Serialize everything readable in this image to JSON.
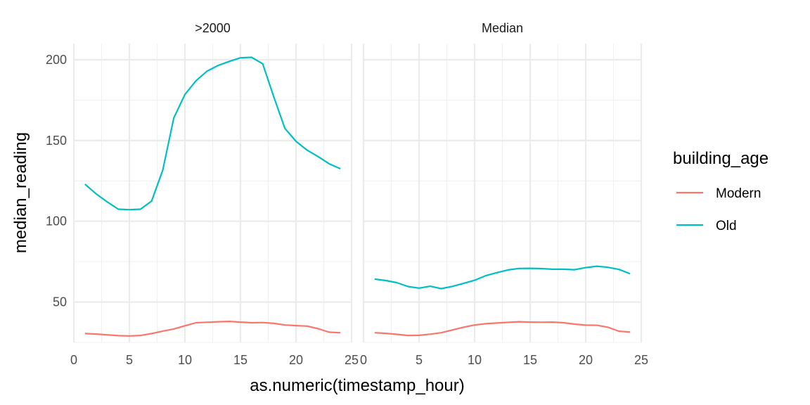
{
  "chart_data": {
    "type": "line",
    "xlabel": "as.numeric(timestamp_hour)",
    "ylabel": "median_reading",
    "xlim": [
      0,
      25
    ],
    "ylim": [
      25,
      210
    ],
    "x_ticks": [
      0,
      5,
      10,
      15,
      20,
      25
    ],
    "x_tick_labels": [
      "0",
      "5",
      "10",
      "15",
      "20",
      "25"
    ],
    "y_ticks": [
      50,
      100,
      150,
      200
    ],
    "y_tick_labels": [
      "50",
      "100",
      "150",
      "200"
    ],
    "grid": true,
    "legend": {
      "title": "building_age",
      "position": "right",
      "entries": [
        {
          "label": "Modern",
          "color": "#F8766D"
        },
        {
          "label": "Old",
          "color": "#00BFC4"
        }
      ]
    },
    "panels": [
      {
        "title": ">2000",
        "series": [
          {
            "name": "Modern",
            "color": "#F8766D",
            "x": [
              1,
              2,
              3,
              4,
              5,
              6,
              7,
              8,
              9,
              10,
              11,
              12,
              13,
              14,
              15,
              16,
              17,
              18,
              19,
              20,
              21,
              22,
              23,
              24
            ],
            "y": [
              30.5,
              30.2,
              29.7,
              29.2,
              29.0,
              29.3,
              30.5,
              32.0,
              33.3,
              35.3,
              37.2,
              37.5,
              37.8,
              38.0,
              37.6,
              37.2,
              37.3,
              36.8,
              35.8,
              35.4,
              35.1,
              33.5,
              31.3,
              31.0
            ]
          },
          {
            "name": "Old",
            "color": "#00BFC4",
            "x": [
              1,
              2,
              3,
              4,
              5,
              6,
              7,
              8,
              9,
              10,
              11,
              12,
              13,
              14,
              15,
              16,
              17,
              18,
              19,
              20,
              21,
              22,
              23,
              24
            ],
            "y": [
              123,
              117,
              112,
              107.5,
              107.2,
              107.5,
              112.5,
              131.5,
              164,
              178.5,
              187,
              193,
              196.5,
              199,
              201.2,
              201.5,
              197.5,
              177,
              157.5,
              149.5,
              144,
              140,
              135.5,
              132.5
            ]
          }
        ]
      },
      {
        "title": "Median",
        "series": [
          {
            "name": "Modern",
            "color": "#F8766D",
            "x": [
              1,
              2,
              3,
              4,
              5,
              6,
              7,
              8,
              9,
              10,
              11,
              12,
              13,
              14,
              15,
              16,
              17,
              18,
              19,
              20,
              21,
              22,
              23,
              24
            ],
            "y": [
              31.0,
              30.6,
              30.0,
              29.3,
              29.4,
              30.1,
              31.0,
              32.7,
              34.4,
              35.8,
              36.6,
              37.0,
              37.4,
              37.8,
              37.6,
              37.5,
              37.6,
              37.2,
              36.3,
              35.7,
              35.6,
              34.4,
              31.9,
              31.4
            ]
          },
          {
            "name": "Old",
            "color": "#00BFC4",
            "x": [
              1,
              2,
              3,
              4,
              5,
              6,
              7,
              8,
              9,
              10,
              11,
              12,
              13,
              14,
              15,
              16,
              17,
              18,
              19,
              20,
              21,
              22,
              23,
              24
            ],
            "y": [
              64.2,
              63.3,
              62.0,
              59.6,
              58.6,
              59.8,
              58.3,
              59.7,
              61.5,
              63.5,
              66.3,
              68.2,
              69.9,
              70.8,
              70.9,
              70.7,
              70.3,
              70.3,
              70.0,
              71.3,
              72.2,
              71.5,
              70.2,
              67.5
            ]
          }
        ]
      }
    ]
  }
}
